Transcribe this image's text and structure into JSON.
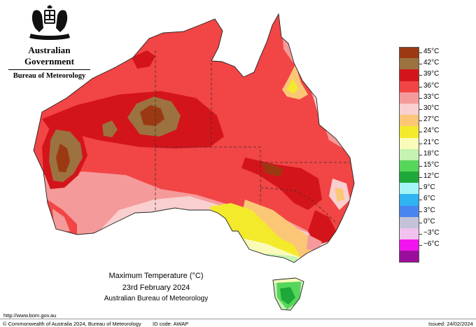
{
  "header": {
    "government": "Australian Government",
    "bureau": "Bureau of Meteorology"
  },
  "legend": [
    {
      "label": "45°C",
      "color": "#9b3a12"
    },
    {
      "label": "42°C",
      "color": "#9b7240"
    },
    {
      "label": "39°C",
      "color": "#d4141b"
    },
    {
      "label": "36°C",
      "color": "#f24545"
    },
    {
      "label": "33°C",
      "color": "#f59a9a"
    },
    {
      "label": "30°C",
      "color": "#f9cfcf"
    },
    {
      "label": "27°C",
      "color": "#fbc776"
    },
    {
      "label": "24°C",
      "color": "#f4ea2c"
    },
    {
      "label": "21°C",
      "color": "#fafbb9"
    },
    {
      "label": "18°C",
      "color": "#c5f3b1"
    },
    {
      "label": "15°C",
      "color": "#57d65c"
    },
    {
      "label": "12°C",
      "color": "#1ea83a"
    },
    {
      "label": "9°C",
      "color": "#a2f4f6"
    },
    {
      "label": "6°C",
      "color": "#30b3f1"
    },
    {
      "label": "3°C",
      "color": "#4a84f0"
    },
    {
      "label": "0°C",
      "color": "#c3c3d7"
    },
    {
      "label": "−3°C",
      "color": "#f2c2ef"
    },
    {
      "label": "−6°C",
      "color": "#f214ee"
    },
    {
      "label": "",
      "color": "#9b0e9b"
    }
  ],
  "caption": {
    "title": "Maximum Temperature (°C)",
    "date": "23rd February 2024",
    "org": "Australian Bureau of Meteorology"
  },
  "footer": {
    "url": "http://www.bom.gov.au",
    "copyright": "© Commonwealth of Australia 2024, Bureau of Meteorology",
    "id_code": "ID code: AWAP",
    "issued": "Issued: 24/02/2024"
  }
}
